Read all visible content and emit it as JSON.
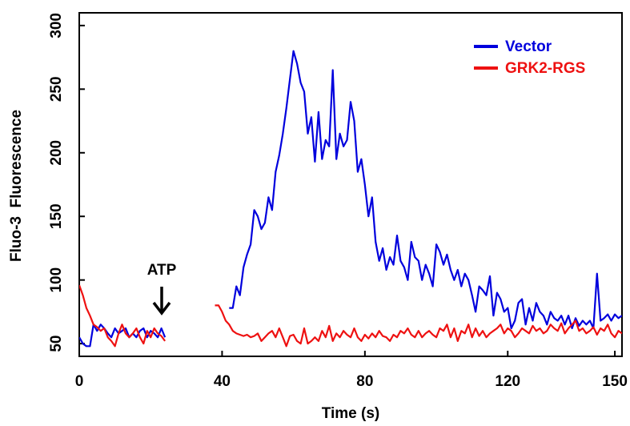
{
  "chart_data": {
    "type": "line",
    "title": "",
    "xlabel": "Time (s)",
    "ylabel": "Fluo-3  Fluorescence",
    "xlim": [
      0,
      152
    ],
    "ylim": [
      40,
      310
    ],
    "x_ticks": [
      {
        "value": 0,
        "label": "0"
      },
      {
        "value": 40,
        "label": "40"
      },
      {
        "value": 80,
        "label": "80"
      },
      {
        "value": 120,
        "label": "120"
      },
      {
        "value": 150,
        "label": "150"
      }
    ],
    "y_ticks": [
      {
        "value": 50,
        "label": "50"
      },
      {
        "value": 100,
        "label": "100"
      },
      {
        "value": 150,
        "label": "150"
      },
      {
        "value": 200,
        "label": "200"
      },
      {
        "value": 250,
        "label": "250"
      },
      {
        "value": 300,
        "label": "300"
      }
    ],
    "grid": false,
    "legend_position": "top-right",
    "annotation": {
      "text": "ATP",
      "x": 23.5,
      "arrow": "down"
    },
    "series": [
      {
        "name": "Vector",
        "color": "#0000dd",
        "segments": [
          {
            "x": [
              0,
              1,
              2,
              3,
              4,
              5,
              6,
              7,
              8,
              9,
              10,
              11,
              12,
              13,
              14,
              15,
              16,
              17,
              18,
              19,
              20,
              21,
              22,
              23,
              24
            ],
            "y": [
              55,
              50,
              48,
              48,
              65,
              60,
              65,
              62,
              58,
              55,
              62,
              58,
              60,
              62,
              55,
              58,
              55,
              60,
              62,
              55,
              60,
              58,
              55,
              62,
              55
            ]
          },
          {
            "x": [
              42,
              43,
              44,
              45,
              46,
              47,
              48,
              49,
              50,
              51,
              52,
              53,
              54,
              55,
              56,
              57,
              58,
              59,
              60,
              61,
              62,
              63,
              64,
              65,
              66,
              67,
              68,
              69,
              70,
              71,
              72,
              73,
              74,
              75,
              76,
              77,
              78,
              79,
              80,
              81,
              82,
              83,
              84,
              85,
              86,
              87,
              88,
              89,
              90,
              91,
              92,
              93,
              94,
              95,
              96,
              97,
              98,
              99,
              100,
              101,
              102,
              103,
              104,
              105,
              106,
              107,
              108,
              109,
              110,
              111,
              112,
              113,
              114,
              115,
              116,
              117,
              118,
              119,
              120,
              121,
              122,
              123,
              124,
              125,
              126,
              127,
              128,
              129,
              130,
              131,
              132,
              133,
              134,
              135,
              136,
              137,
              138,
              139,
              140,
              141,
              142,
              143,
              144,
              145,
              146,
              147,
              148,
              149,
              150,
              151,
              152
            ],
            "y": [
              78,
              78,
              95,
              88,
              110,
              120,
              128,
              155,
              150,
              140,
              145,
              165,
              155,
              185,
              198,
              215,
              235,
              258,
              280,
              270,
              255,
              248,
              215,
              228,
              193,
              232,
              195,
              210,
              205,
              265,
              195,
              215,
              205,
              210,
              240,
              225,
              185,
              195,
              175,
              150,
              165,
              130,
              115,
              125,
              108,
              118,
              112,
              135,
              115,
              110,
              100,
              130,
              118,
              115,
              100,
              112,
              105,
              95,
              128,
              122,
              112,
              120,
              108,
              100,
              108,
              95,
              105,
              100,
              88,
              75,
              95,
              92,
              88,
              103,
              72,
              90,
              85,
              75,
              78,
              62,
              68,
              82,
              85,
              65,
              78,
              68,
              82,
              75,
              72,
              65,
              75,
              70,
              68,
              72,
              65,
              72,
              62,
              70,
              64,
              68,
              65,
              68,
              62,
              105,
              68,
              70,
              73,
              68,
              73,
              70,
              72
            ]
          }
        ]
      },
      {
        "name": "GRK2-RGS",
        "color": "#ee1111",
        "segments": [
          {
            "x": [
              0,
              1,
              2,
              3,
              4,
              5,
              6,
              7,
              8,
              9,
              10,
              11,
              12,
              13,
              14,
              15,
              16,
              17,
              18,
              19,
              20,
              21,
              22,
              23,
              24
            ],
            "y": [
              96,
              88,
              78,
              72,
              65,
              63,
              60,
              62,
              55,
              52,
              48,
              58,
              65,
              58,
              55,
              58,
              62,
              55,
              50,
              60,
              55,
              62,
              58,
              56,
              52
            ]
          },
          {
            "x": [
              38,
              39,
              40,
              41,
              42,
              43,
              44,
              45,
              46,
              47,
              48,
              49,
              50,
              51,
              52,
              53,
              54,
              55,
              56,
              57,
              58,
              59,
              60,
              61,
              62,
              63,
              64,
              65,
              66,
              67,
              68,
              69,
              70,
              71,
              72,
              73,
              74,
              75,
              76,
              77,
              78,
              79,
              80,
              81,
              82,
              83,
              84,
              85,
              86,
              87,
              88,
              89,
              90,
              91,
              92,
              93,
              94,
              95,
              96,
              97,
              98,
              99,
              100,
              101,
              102,
              103,
              104,
              105,
              106,
              107,
              108,
              109,
              110,
              111,
              112,
              113,
              114,
              115,
              116,
              117,
              118,
              119,
              120,
              121,
              122,
              123,
              124,
              125,
              126,
              127,
              128,
              129,
              130,
              131,
              132,
              133,
              134,
              135,
              136,
              137,
              138,
              139,
              140,
              141,
              142,
              143,
              144,
              145,
              146,
              147,
              148,
              149,
              150,
              151,
              152
            ],
            "y": [
              80,
              80,
              75,
              68,
              65,
              60,
              58,
              57,
              56,
              57,
              55,
              56,
              58,
              52,
              55,
              58,
              60,
              55,
              62,
              55,
              48,
              56,
              57,
              52,
              50,
              62,
              50,
              52,
              55,
              52,
              60,
              55,
              64,
              52,
              58,
              55,
              60,
              57,
              55,
              62,
              55,
              52,
              57,
              54,
              58,
              55,
              60,
              56,
              55,
              52,
              57,
              55,
              60,
              58,
              62,
              57,
              55,
              60,
              55,
              58,
              60,
              57,
              55,
              62,
              60,
              65,
              55,
              62,
              52,
              60,
              58,
              65,
              55,
              62,
              56,
              60,
              55,
              58,
              60,
              62,
              65,
              58,
              62,
              60,
              55,
              58,
              62,
              60,
              58,
              64,
              60,
              62,
              58,
              60,
              65,
              62,
              60,
              66,
              58,
              62,
              65,
              68,
              60,
              62,
              58,
              60,
              63,
              57,
              62,
              60,
              65,
              58,
              55,
              60,
              58
            ]
          }
        ]
      }
    ]
  }
}
